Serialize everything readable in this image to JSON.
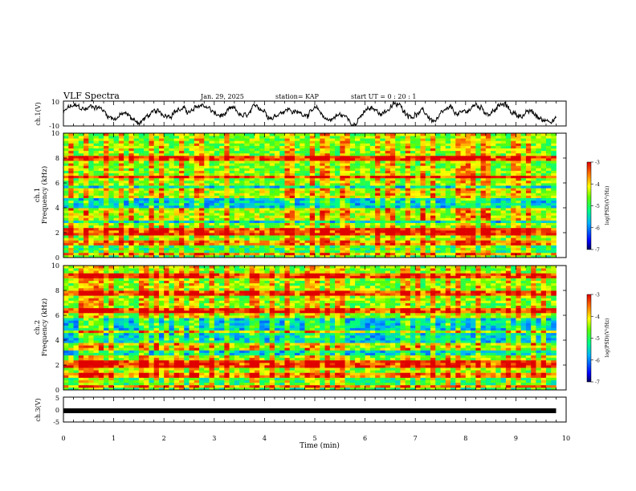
{
  "header": {
    "title": "VLF Spectra",
    "date": "Jan. 29, 2025",
    "station": "station= KAP",
    "start_ut": "start UT =  0 : 20 : 1"
  },
  "chart_data": [
    {
      "type": "line",
      "ylabel": "ch.1(V)",
      "ylim": [
        -10,
        10
      ],
      "y_ticks": [
        "10",
        "-10"
      ],
      "x_range_min": [
        0,
        9.8
      ],
      "note_series": "waveform amplitude trace"
    },
    {
      "type": "heatmap",
      "ylabel": "ch.1\nFrequency (kHz)",
      "ylabel_lines": [
        "ch.1",
        "Frequency (kHz)"
      ],
      "ylim": [
        0,
        10
      ],
      "y_ticks": [
        "0",
        "2",
        "4",
        "6",
        "8",
        "10"
      ],
      "colorbar": {
        "label": "log(PSD)(V²/Hz)",
        "range": [
          -7,
          -3
        ],
        "ticks": [
          "-3",
          "-4",
          "-5",
          "-6",
          "-7"
        ]
      },
      "bands_khz": [
        0.3,
        1.2,
        2.0,
        2.3,
        3.2,
        3.6,
        3.9,
        5.0,
        5.4,
        6.5,
        8.0
      ]
    },
    {
      "type": "heatmap",
      "ylabel_lines": [
        "ch.2",
        "Frequency (kHz)"
      ],
      "ylim": [
        0,
        10
      ],
      "y_ticks": [
        "0",
        "2",
        "4",
        "6",
        "8",
        "10"
      ],
      "colorbar": {
        "label": "log(PSD)(V²/Hz)",
        "range": [
          -7,
          -3
        ],
        "ticks": [
          "-3",
          "-4",
          "-5",
          "-6",
          "-7"
        ]
      },
      "bands_khz": [
        0.3,
        1.2,
        1.9,
        2.2,
        3.3,
        3.6,
        4.7,
        6.4,
        7.8,
        9.2
      ]
    },
    {
      "type": "line",
      "ylabel": "ch.3(V)",
      "ylim": [
        -5,
        5
      ],
      "y_ticks": [
        "5",
        "0",
        "-5"
      ],
      "value": -0.5
    }
  ],
  "x_axis": {
    "label": "Time (min)",
    "ticks": [
      "0",
      "1",
      "2",
      "3",
      "4",
      "5",
      "6",
      "7",
      "8",
      "9",
      "10"
    ],
    "range": [
      0,
      10
    ]
  }
}
